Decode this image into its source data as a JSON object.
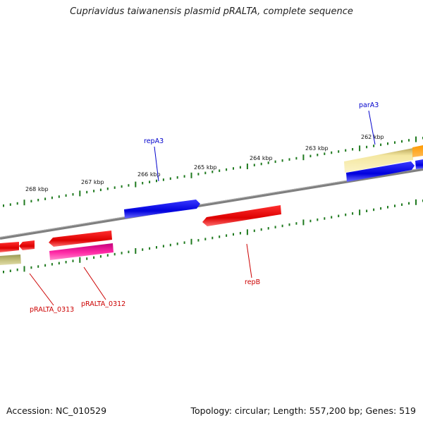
{
  "title": "Cupriavidus taiwanensis plasmid pRALTA, complete sequence",
  "footer": {
    "accession": "Accession: NC_010529",
    "summary": "Topology: circular; Length: 557,200 bp; Genes: 519"
  },
  "colors": {
    "backbone": "#8a8a8a",
    "tick": "#1f7a1f",
    "forward_label": "#0000cc",
    "reverse_label": "#cc0000"
  },
  "scale": {
    "unit": "kbp",
    "labels": [
      "268 kbp",
      "267 kbp",
      "266 kbp",
      "265 kbp",
      "264 kbp",
      "263 kbp",
      "262 kbp"
    ]
  },
  "genes": {
    "parA3": {
      "label": "parA3",
      "strand": "forward",
      "color": "#0000cc"
    },
    "repA3": {
      "label": "repA3",
      "strand": "forward",
      "color": "#0000cc"
    },
    "repB": {
      "label": "repB",
      "strand": "reverse",
      "color": "#cc0000"
    },
    "pRALTA_0312": {
      "label": "pRALTA_0312",
      "strand": "reverse",
      "color": "#cc0000"
    },
    "pRALTA_0313": {
      "label": "pRALTA_0313",
      "strand": "reverse",
      "color": "#cc0000"
    }
  }
}
